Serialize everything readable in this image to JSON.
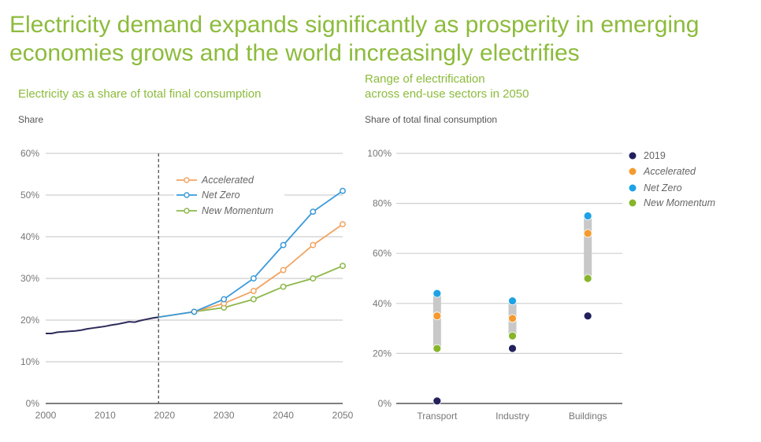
{
  "header": {
    "title": "Electricity demand expands significantly as prosperity in emerging economies grows and the world increasingly electrifies"
  },
  "colors": {
    "title_green": "#8cbb3c",
    "history": "#2d2a5a",
    "accelerated": "#f2a462",
    "net_zero": "#3a9ad9",
    "new_momentum": "#8cb849",
    "dot_2019": "#23205e",
    "dot_accelerated": "#f59a2e",
    "dot_net_zero": "#1ea2e6",
    "dot_new_momentum": "#86b52a",
    "range_bar": "#c8c8c8",
    "grid": "#cfcfcf"
  },
  "chart_data": [
    {
      "type": "line",
      "title": "Electricity as a share of total final consumption",
      "ylabel": "Share",
      "xlabel": "",
      "xlim": [
        2000,
        2050
      ],
      "ylim": [
        0,
        60
      ],
      "x_ticks": [
        "2000",
        "2010",
        "2020",
        "2030",
        "2040",
        "2050"
      ],
      "y_ticks": [
        "0%",
        "10%",
        "20%",
        "30%",
        "40%",
        "50%",
        "60%"
      ],
      "grid": true,
      "divider_year": 2019,
      "legend": {
        "position": "top-center",
        "entries": [
          "Accelerated",
          "Net Zero",
          "New Momentum"
        ]
      },
      "history": {
        "name": "History",
        "x": [
          2000,
          2001,
          2002,
          2003,
          2004,
          2005,
          2006,
          2007,
          2008,
          2009,
          2010,
          2011,
          2012,
          2013,
          2014,
          2015,
          2016,
          2017,
          2018,
          2019
        ],
        "values": [
          16.8,
          16.8,
          17.1,
          17.2,
          17.3,
          17.4,
          17.6,
          17.9,
          18.1,
          18.3,
          18.5,
          18.8,
          19.0,
          19.3,
          19.6,
          19.5,
          19.9,
          20.2,
          20.5,
          20.7
        ]
      },
      "series": [
        {
          "name": "Accelerated",
          "x": [
            2019,
            2025,
            2030,
            2035,
            2040,
            2045,
            2050
          ],
          "values": [
            20.7,
            22,
            24,
            27,
            32,
            38,
            43
          ]
        },
        {
          "name": "Net Zero",
          "x": [
            2019,
            2025,
            2030,
            2035,
            2040,
            2045,
            2050
          ],
          "values": [
            20.7,
            22,
            25,
            30,
            38,
            46,
            51
          ]
        },
        {
          "name": "New Momentum",
          "x": [
            2019,
            2025,
            2030,
            2035,
            2040,
            2045,
            2050
          ],
          "values": [
            20.7,
            22,
            23,
            25,
            28,
            30,
            33
          ]
        }
      ]
    },
    {
      "type": "scatter",
      "title": "Range of electrification across end-use sectors in 2050",
      "title_lines": [
        "Range of electrification",
        "across end-use sectors in 2050"
      ],
      "ylabel": "Share of total final consumption",
      "ylim": [
        0,
        100
      ],
      "y_ticks": [
        "0%",
        "20%",
        "40%",
        "60%",
        "80%",
        "100%"
      ],
      "grid": true,
      "categories": [
        "Transport",
        "Industry",
        "Buildings"
      ],
      "legend": {
        "position": "top-right",
        "entries": [
          "2019",
          "Accelerated",
          "Net Zero",
          "New Momentum"
        ]
      },
      "series": [
        {
          "name": "2019",
          "values": [
            1,
            22,
            35
          ]
        },
        {
          "name": "Accelerated",
          "values": [
            35,
            34,
            68
          ]
        },
        {
          "name": "Net Zero",
          "values": [
            44,
            41,
            75
          ]
        },
        {
          "name": "New Momentum",
          "values": [
            22,
            27,
            50
          ]
        }
      ]
    }
  ]
}
